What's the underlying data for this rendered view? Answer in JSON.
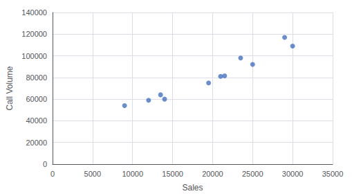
{
  "chart_data": {
    "type": "scatter",
    "x": [
      9000,
      12000,
      13500,
      14000,
      19500,
      21000,
      21500,
      23500,
      25000,
      29000,
      30000
    ],
    "values": [
      54000,
      59000,
      64000,
      60000,
      75000,
      81000,
      81500,
      98000,
      92000,
      117000,
      109000
    ],
    "color": "#4472C4",
    "marker": "circle",
    "xlabel": "Sales",
    "ylabel": "Call Volume",
    "xlim": [
      0,
      35000
    ],
    "ylim": [
      0,
      140000
    ],
    "xticks": [
      0,
      5000,
      10000,
      15000,
      20000,
      25000,
      30000,
      35000
    ],
    "yticks": [
      0,
      20000,
      40000,
      60000,
      80000,
      100000,
      120000,
      140000
    ],
    "grid": true
  }
}
